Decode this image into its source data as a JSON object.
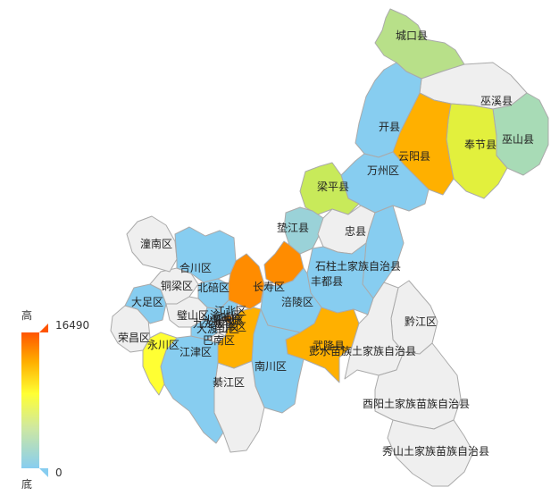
{
  "legend": {
    "high_label": "高",
    "low_label": "底",
    "max": "16490",
    "min": "0",
    "gradient": [
      "#87cdf0",
      "#cfe8a0",
      "#ffff33",
      "#ffb000",
      "#ff5500"
    ],
    "handle_top_color": "#ff5500",
    "handle_bottom_color": "#87cdf0"
  },
  "colors": {
    "no_data": "#efefef",
    "border": "#aaaaaa"
  },
  "regions": [
    {
      "id": "chengkou",
      "name": "城口县",
      "color": "#b8e089"
    },
    {
      "id": "wuxi",
      "name": "巫溪县",
      "color": "#efefef"
    },
    {
      "id": "wushan",
      "name": "巫山县",
      "color": "#a8dbb6"
    },
    {
      "id": "fengjie",
      "name": "奉节县",
      "color": "#e2f03d"
    },
    {
      "id": "yunyang",
      "name": "云阳县",
      "color": "#ffb000"
    },
    {
      "id": "kaixian",
      "name": "开县",
      "color": "#87cdf0"
    },
    {
      "id": "wanzhou",
      "name": "万州区",
      "color": "#87cdf0"
    },
    {
      "id": "liangping",
      "name": "梁平县",
      "color": "#c8ea5a"
    },
    {
      "id": "dianjiang",
      "name": "垫江县",
      "color": "#9ad2d8"
    },
    {
      "id": "zhongxian",
      "name": "忠县",
      "color": "#efefef"
    },
    {
      "id": "shizhu",
      "name": "石柱土家族自治县",
      "color": "#87cdf0"
    },
    {
      "id": "fengdu",
      "name": "丰都县",
      "color": "#87cdf0"
    },
    {
      "id": "changshou",
      "name": "长寿区",
      "color": "#ff8c00"
    },
    {
      "id": "fuling",
      "name": "涪陵区",
      "color": "#87cdf0"
    },
    {
      "id": "wulong",
      "name": "武隆县",
      "color": "#ffb000"
    },
    {
      "id": "qianjiang",
      "name": "黔江区",
      "color": "#efefef"
    },
    {
      "id": "pengshui",
      "name": "彭水苗族土家族自治县",
      "color": "#efefef"
    },
    {
      "id": "youyang",
      "name": "酉阳土家族苗族自治县",
      "color": "#efefef"
    },
    {
      "id": "xiushan",
      "name": "秀山土家族苗族自治县",
      "color": "#efefef"
    },
    {
      "id": "nanchuan",
      "name": "南川区",
      "color": "#87cdf0"
    },
    {
      "id": "qijiang",
      "name": "綦江区",
      "color": "#efefef"
    },
    {
      "id": "banan",
      "name": "巴南区",
      "color": "#ffb000"
    },
    {
      "id": "jiangjin",
      "name": "江津区",
      "color": "#87cdf0"
    },
    {
      "id": "yongchuan",
      "name": "永川区",
      "color": "#ffff33"
    },
    {
      "id": "rongchang",
      "name": "荣昌区",
      "color": "#efefef"
    },
    {
      "id": "dazu",
      "name": "大足区",
      "color": "#87cdf0"
    },
    {
      "id": "tongliang",
      "name": "铜梁区",
      "color": "#efefef"
    },
    {
      "id": "tongnan",
      "name": "潼南区",
      "color": "#efefef"
    },
    {
      "id": "hechuan",
      "name": "合川区",
      "color": "#87cdf0"
    },
    {
      "id": "beibei",
      "name": "北碚区",
      "color": "#87cdf0"
    },
    {
      "id": "bishan",
      "name": "璧山区",
      "color": "#efefef"
    },
    {
      "id": "yubei",
      "name": "渝北区",
      "color": "#ff8c00"
    },
    {
      "id": "jiulongpo",
      "name": "九龙坡区",
      "color": "#87cdf0"
    },
    {
      "id": "dadukou",
      "name": "大渡口区",
      "color": "#efefef"
    },
    {
      "id": "shapingba",
      "name": "沙坪坝区",
      "color": "#87cdf0"
    },
    {
      "id": "yuzhong",
      "name": "渝中区",
      "color": "#ff8c00"
    },
    {
      "id": "jiangbei",
      "name": "江北区",
      "color": "#87cdf0"
    },
    {
      "id": "nanan",
      "name": "南岸区",
      "color": "#efefef"
    }
  ]
}
